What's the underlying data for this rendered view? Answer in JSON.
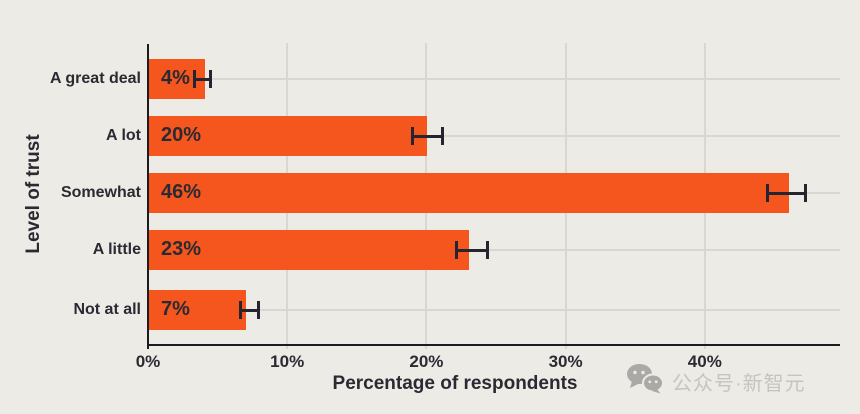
{
  "watermark": {
    "text": "公众号·新智元",
    "icon": "wechat-icon"
  },
  "chart_data": {
    "type": "bar",
    "orientation": "horizontal",
    "title": "",
    "xlabel": "Percentage of respondents",
    "ylabel": "Level of trust",
    "categories": [
      "A great deal",
      "A lot",
      "Somewhat",
      "A little",
      "Not at all"
    ],
    "values": [
      4,
      20,
      46,
      23,
      7
    ],
    "value_labels": [
      "4%",
      "20%",
      "46%",
      "23%",
      "7%"
    ],
    "error_low": [
      3.3,
      19.0,
      44.5,
      22.1,
      6.6
    ],
    "error_high": [
      4.5,
      21.2,
      47.3,
      24.4,
      8.0
    ],
    "x_ticks": [
      0,
      10,
      20,
      30,
      40
    ],
    "x_tick_labels": [
      "0%",
      "10%",
      "20%",
      "30%",
      "40%"
    ],
    "xlim": [
      0,
      49.7
    ],
    "grid": true,
    "legend": "none",
    "colors": {
      "bar": "#F4561E",
      "background": "#EDEBE6",
      "grid": "#D9D7D3",
      "axis": "#1B1B20",
      "text": "#2B2A33",
      "error": "#26242E",
      "watermark": "#C6C4C0",
      "watermark_icon": "#ABA9A5"
    }
  }
}
